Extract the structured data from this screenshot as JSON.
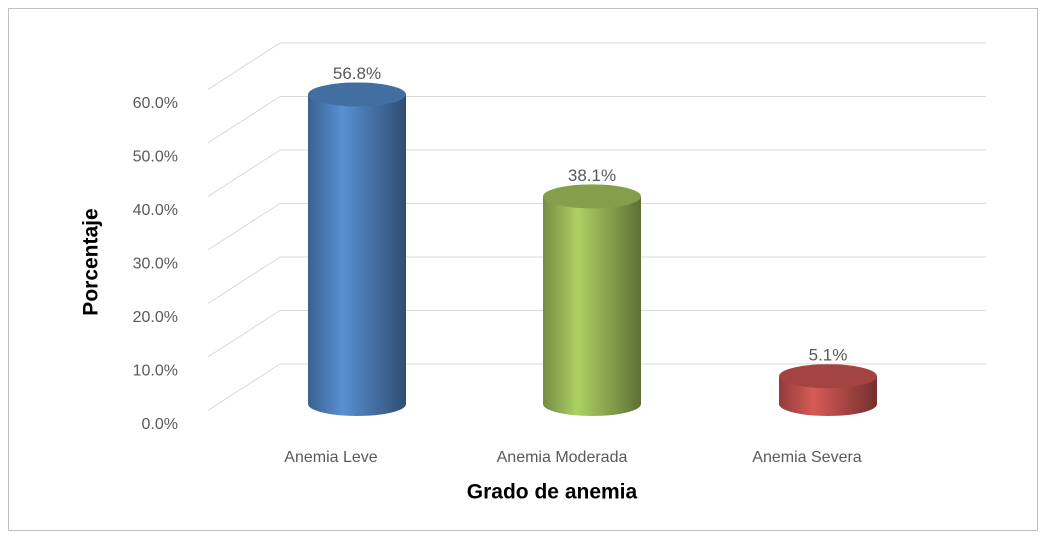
{
  "chart_data": {
    "type": "bar3d",
    "xlabel": "Grado de anemia",
    "ylabel": "Porcentaje",
    "categories": [
      "Anemia Leve",
      "Anemia Moderada",
      "Anemia Severa"
    ],
    "values": [
      56.8,
      38.1,
      5.1
    ],
    "value_labels": [
      "56.8%",
      "38.1%",
      "5.1%"
    ],
    "colors": [
      "#4f81bd",
      "#9bbb59",
      "#c0504d"
    ],
    "ylim": [
      0,
      60
    ],
    "yticks": [
      {
        "value": 0,
        "label": "0.0%"
      },
      {
        "value": 10,
        "label": "10.0%"
      },
      {
        "value": 20,
        "label": "20.0%"
      },
      {
        "value": 30,
        "label": "30.0%"
      },
      {
        "value": 40,
        "label": "40.0%"
      },
      {
        "value": 50,
        "label": "50.0%"
      },
      {
        "value": 60,
        "label": "60.0%"
      }
    ],
    "grid": true
  }
}
